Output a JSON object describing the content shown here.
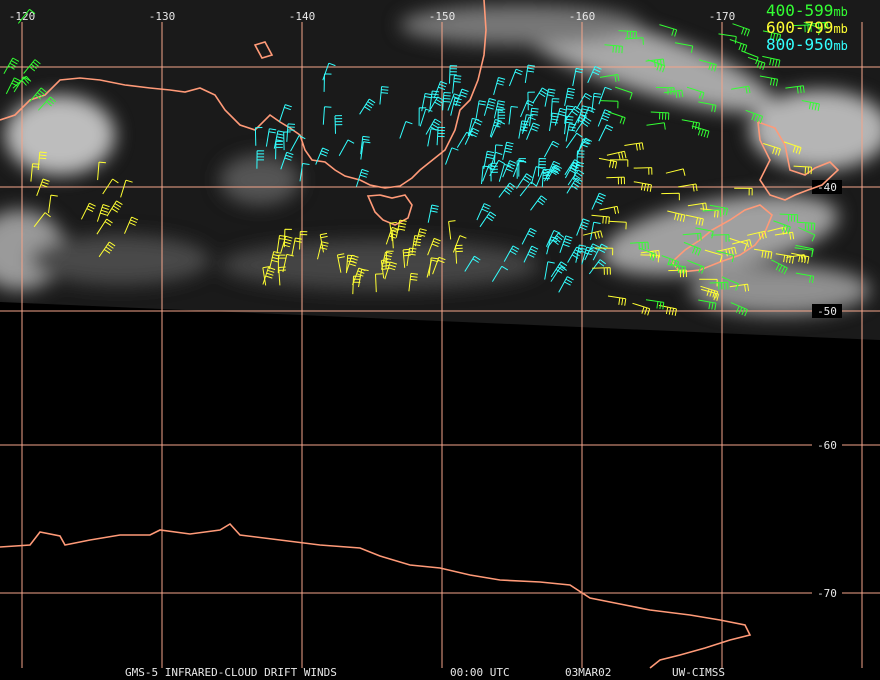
{
  "map": {
    "longitude_labels": [
      "-120",
      "-130",
      "-140",
      "-150",
      "-160",
      "-170"
    ],
    "latitude_labels": [
      "-40",
      "-50",
      "-60",
      "-70"
    ],
    "legend": [
      {
        "range": "400-599",
        "unit": "mb",
        "color": "#33ff33"
      },
      {
        "range": "600-799",
        "unit": "mb",
        "color": "#ffff33"
      },
      {
        "range": "800-950",
        "unit": "mb",
        "color": "#33ffff"
      }
    ],
    "footer": {
      "product": "GMS-5 INFRARED-CLOUD DRIFT WINDS",
      "time": "00:00 UTC",
      "date": "03MAR02",
      "source": "UW-CIMSS"
    }
  }
}
